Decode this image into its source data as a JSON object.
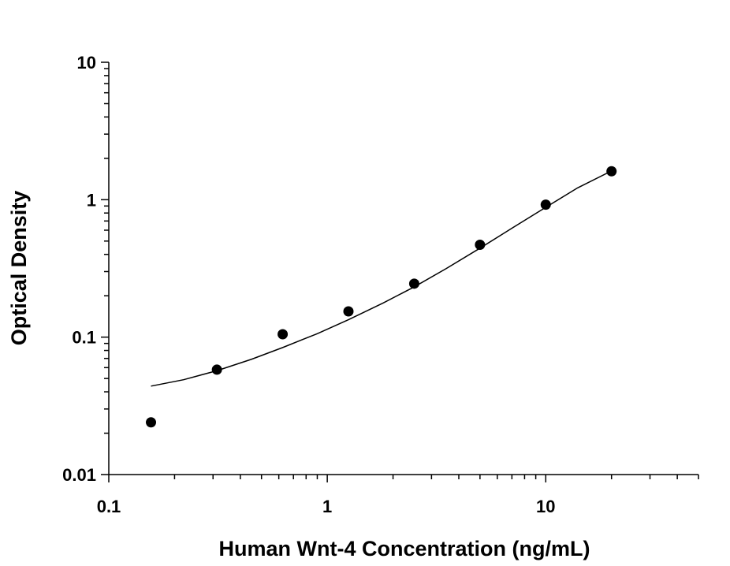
{
  "chart_data": {
    "type": "scatter",
    "xlabel": "Human Wnt-4 Concentration (ng/mL)",
    "ylabel": "Optical Density",
    "xscale": "log",
    "yscale": "log",
    "xlim": [
      0.1,
      50
    ],
    "ylim": [
      0.01,
      10
    ],
    "x_ticks": [
      {
        "value": 0.1,
        "label": "0.1"
      },
      {
        "value": 1,
        "label": "1"
      },
      {
        "value": 10,
        "label": "10"
      }
    ],
    "y_ticks": [
      {
        "value": 0.01,
        "label": "0.01"
      },
      {
        "value": 0.1,
        "label": "0.1"
      },
      {
        "value": 1,
        "label": "1"
      },
      {
        "value": 10,
        "label": "10"
      }
    ],
    "grid": false,
    "legend": "none",
    "series": [
      {
        "points": [
          {
            "x": 0.156,
            "y": 0.024
          },
          {
            "x": 0.3125,
            "y": 0.058
          },
          {
            "x": 0.625,
            "y": 0.105
          },
          {
            "x": 1.25,
            "y": 0.154
          },
          {
            "x": 2.5,
            "y": 0.245
          },
          {
            "x": 5,
            "y": 0.47
          },
          {
            "x": 10,
            "y": 0.92
          },
          {
            "x": 20,
            "y": 1.61
          }
        ]
      }
    ],
    "fit_curve": {
      "type": "line",
      "points": [
        {
          "x": 0.156,
          "y": 0.044
        },
        {
          "x": 0.22,
          "y": 0.049
        },
        {
          "x": 0.3125,
          "y": 0.057
        },
        {
          "x": 0.45,
          "y": 0.069
        },
        {
          "x": 0.625,
          "y": 0.084
        },
        {
          "x": 0.9,
          "y": 0.106
        },
        {
          "x": 1.25,
          "y": 0.134
        },
        {
          "x": 1.8,
          "y": 0.177
        },
        {
          "x": 2.5,
          "y": 0.232
        },
        {
          "x": 3.5,
          "y": 0.315
        },
        {
          "x": 5,
          "y": 0.444
        },
        {
          "x": 7,
          "y": 0.62
        },
        {
          "x": 10,
          "y": 0.88
        },
        {
          "x": 14,
          "y": 1.22
        },
        {
          "x": 20,
          "y": 1.62
        }
      ]
    }
  }
}
